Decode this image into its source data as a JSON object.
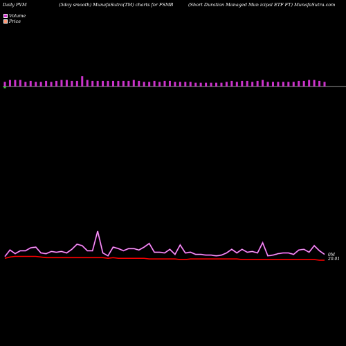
{
  "header": {
    "left": "Daily PVM",
    "middle": "(5day smooth) MunafaSutra(TM) charts for FSMB",
    "right": "(Short Duration  Managed Mun icipal ETF FT) MunafaSutra.com"
  },
  "legend": [
    {
      "label": "Volume",
      "color": "#cc33cc"
    },
    {
      "label": "Price",
      "color": "#ff9977"
    }
  ],
  "colors": {
    "background": "#000000",
    "volume_bar": "#cc33cc",
    "first_bar": "#33cc33",
    "baseline": "#cccccc",
    "volume_line_outer": "#cc33cc",
    "volume_line_inner": "#ffffff",
    "price_line": "#ff0000"
  },
  "price_label": {
    "line1": "0M",
    "line2": "20.01"
  },
  "chart_data": {
    "type": "line",
    "series": [
      {
        "name": "Volume",
        "kind": "bar",
        "values": [
          5,
          7,
          7,
          7,
          5,
          6,
          5,
          5,
          6,
          5,
          6,
          7,
          7,
          6,
          6,
          11,
          7,
          6,
          6,
          6,
          6,
          6,
          6,
          6,
          6,
          7,
          6,
          5,
          5,
          6,
          5,
          6,
          6,
          5,
          5,
          5,
          5,
          4,
          4,
          4,
          4,
          4,
          4,
          5,
          6,
          5,
          6,
          6,
          5,
          6,
          7,
          5,
          5,
          5,
          5,
          5,
          5,
          6,
          6,
          7,
          7,
          6,
          5
        ]
      },
      {
        "name": "Volume (smoothed)",
        "kind": "line",
        "values": [
          5,
          14,
          9,
          13,
          13,
          17,
          18,
          10,
          9,
          12,
          11,
          12,
          10,
          15,
          22,
          20,
          13,
          13,
          40,
          10,
          6,
          18,
          16,
          13,
          16,
          16,
          14,
          18,
          23,
          11,
          11,
          10,
          15,
          8,
          21,
          10,
          11,
          8,
          8,
          7,
          7,
          6,
          7,
          10,
          15,
          10,
          15,
          11,
          12,
          10,
          24,
          6,
          7,
          9,
          10,
          10,
          8,
          14,
          15,
          11,
          20,
          13,
          8
        ]
      },
      {
        "name": "Price",
        "kind": "line",
        "values": [
          20.04,
          20.06,
          20.07,
          20.07,
          20.07,
          20.07,
          20.07,
          20.06,
          20.05,
          20.05,
          20.05,
          20.05,
          20.05,
          20.05,
          20.05,
          20.05,
          20.05,
          20.05,
          20.05,
          20.05,
          20.04,
          20.05,
          20.04,
          20.04,
          20.04,
          20.04,
          20.04,
          20.04,
          20.03,
          20.03,
          20.03,
          20.03,
          20.03,
          20.03,
          20.02,
          20.02,
          20.03,
          20.03,
          20.03,
          20.03,
          20.03,
          20.03,
          20.03,
          20.03,
          20.03,
          20.03,
          20.02,
          20.02,
          20.02,
          20.02,
          20.02,
          20.02,
          20.02,
          20.02,
          20.02,
          20.02,
          20.02,
          20.02,
          20.02,
          20.02,
          20.02,
          20.01,
          20.01
        ]
      }
    ]
  }
}
